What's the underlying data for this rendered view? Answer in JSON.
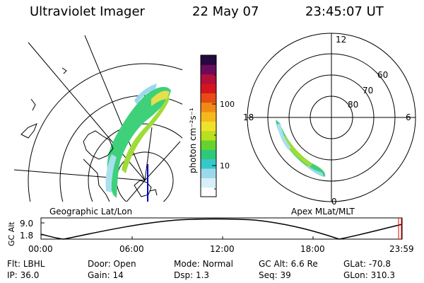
{
  "header": {
    "instrument": "Ultraviolet Imager",
    "date": "22 May 07",
    "time": "23:45:07 UT"
  },
  "left_panel": {
    "caption": "Geographic Lat/Lon"
  },
  "right_panel": {
    "caption": "Apex MLat/MLT",
    "mlt_labels": [
      "12",
      "18",
      "6",
      "0"
    ],
    "lat_labels": [
      "60",
      "70",
      "80"
    ]
  },
  "colorbar": {
    "unit_label": "photon cm⁻²s⁻¹",
    "ticks": [
      "100",
      "10"
    ],
    "scale": "log",
    "colors": [
      "#ffffff",
      "#d8eef8",
      "#9ad8ec",
      "#36c8c8",
      "#2ec87a",
      "#66d22e",
      "#b9e01e",
      "#f0e12a",
      "#f5b81e",
      "#f08a16",
      "#e84a14",
      "#d6141e",
      "#b0103a",
      "#6a0c5a",
      "#24083e"
    ]
  },
  "orbit": {
    "ylabel": "GC Alt",
    "yticks": [
      "9.0",
      "1.8"
    ],
    "xticks": [
      "00:00",
      "06:00",
      "12:00",
      "18:00",
      "23:59"
    ],
    "marker_color": "#ff0000"
  },
  "info": {
    "row1": [
      {
        "key": "Flt:",
        "value": "LBHL"
      },
      {
        "key": "Door:",
        "value": "Open"
      },
      {
        "key": "Mode:",
        "value": "Normal"
      },
      {
        "key": "GC Alt:",
        "value": "6.6 Re"
      },
      {
        "key": "GLat:",
        "value": "-70.8"
      }
    ],
    "row2": [
      {
        "key": "IP:",
        "value": "36.0"
      },
      {
        "key": "Gain:",
        "value": "14"
      },
      {
        "key": "Dsp:",
        "value": "1.3"
      },
      {
        "key": "Seq:",
        "value": "39"
      },
      {
        "key": "GLon:",
        "value": "310.3"
      }
    ]
  }
}
